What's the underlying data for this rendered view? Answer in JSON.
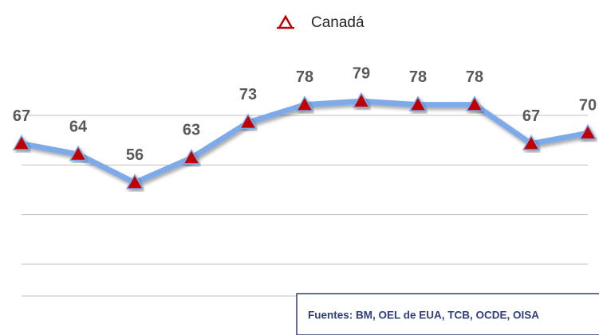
{
  "chart_data": {
    "type": "line",
    "categories": [
      null,
      null,
      null,
      null,
      null,
      null,
      null,
      null,
      null,
      null,
      null
    ],
    "series": [
      {
        "name": "Canadá",
        "color": "#7eaaea",
        "marker_color": "#c00000",
        "values": [
          67,
          64,
          56,
          63,
          73,
          78,
          79,
          78,
          78,
          67,
          70
        ]
      }
    ],
    "ylim": [
      24,
      95
    ],
    "yticks": [
      33,
      47,
      61,
      75
    ],
    "grid": true,
    "legend": "top",
    "annotation": "Fuentes: BM, OEL de EUA, TCB, OCDE, OISA"
  }
}
